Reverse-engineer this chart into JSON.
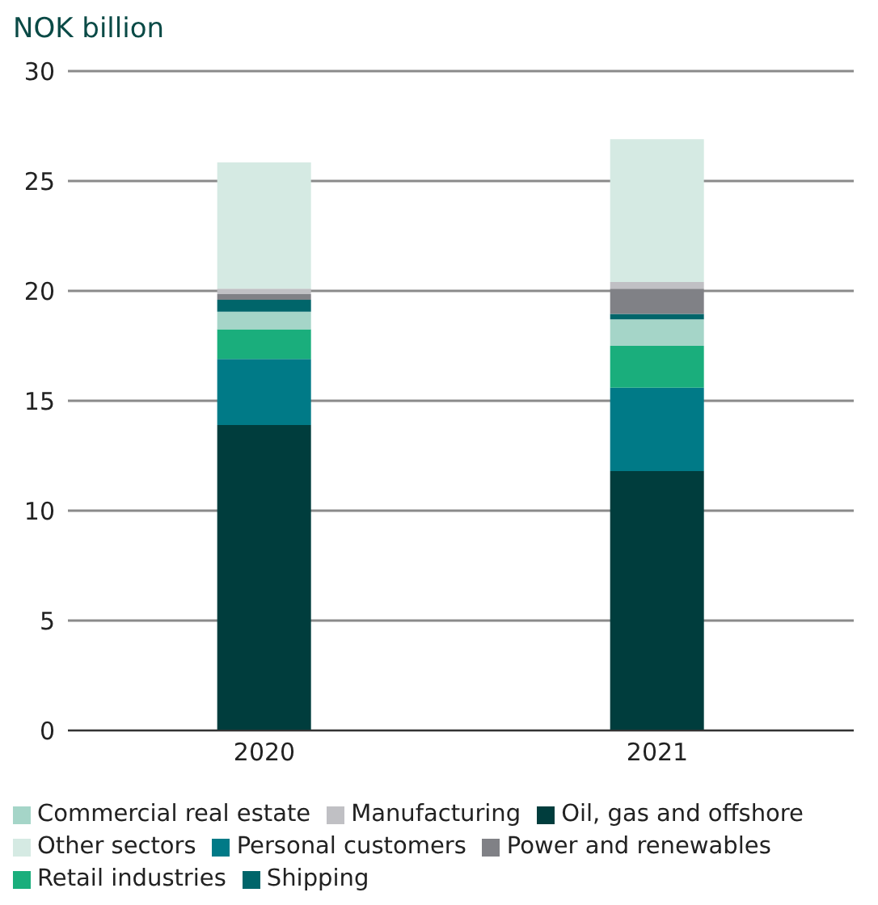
{
  "chart_data": {
    "type": "bar",
    "stacked": true,
    "title": "NOK billion",
    "categories": [
      "2020",
      "2021"
    ],
    "series": [
      {
        "name": "Oil, gas and offshore",
        "color": "#003d3d",
        "values": [
          13.9,
          11.8
        ]
      },
      {
        "name": "Personal customers",
        "color": "#007a87",
        "values": [
          3.0,
          3.8
        ]
      },
      {
        "name": "Retail industries",
        "color": "#1aae7c",
        "values": [
          1.35,
          1.9
        ]
      },
      {
        "name": "Commercial real estate",
        "color": "#a5d5c8",
        "values": [
          0.8,
          1.2
        ]
      },
      {
        "name": "Shipping",
        "color": "#00656a",
        "values": [
          0.55,
          0.25
        ]
      },
      {
        "name": "Power and renewables",
        "color": "#808186",
        "values": [
          0.25,
          1.15
        ]
      },
      {
        "name": "Manufacturing",
        "color": "#c0c0c4",
        "values": [
          0.25,
          0.3
        ]
      },
      {
        "name": "Other sectors",
        "color": "#d5eae3",
        "values": [
          5.75,
          6.5
        ]
      }
    ],
    "ylim": [
      0,
      30
    ],
    "yticks": [
      0,
      5,
      10,
      15,
      20,
      25,
      30
    ],
    "grid": "y",
    "legend": "bottom"
  }
}
